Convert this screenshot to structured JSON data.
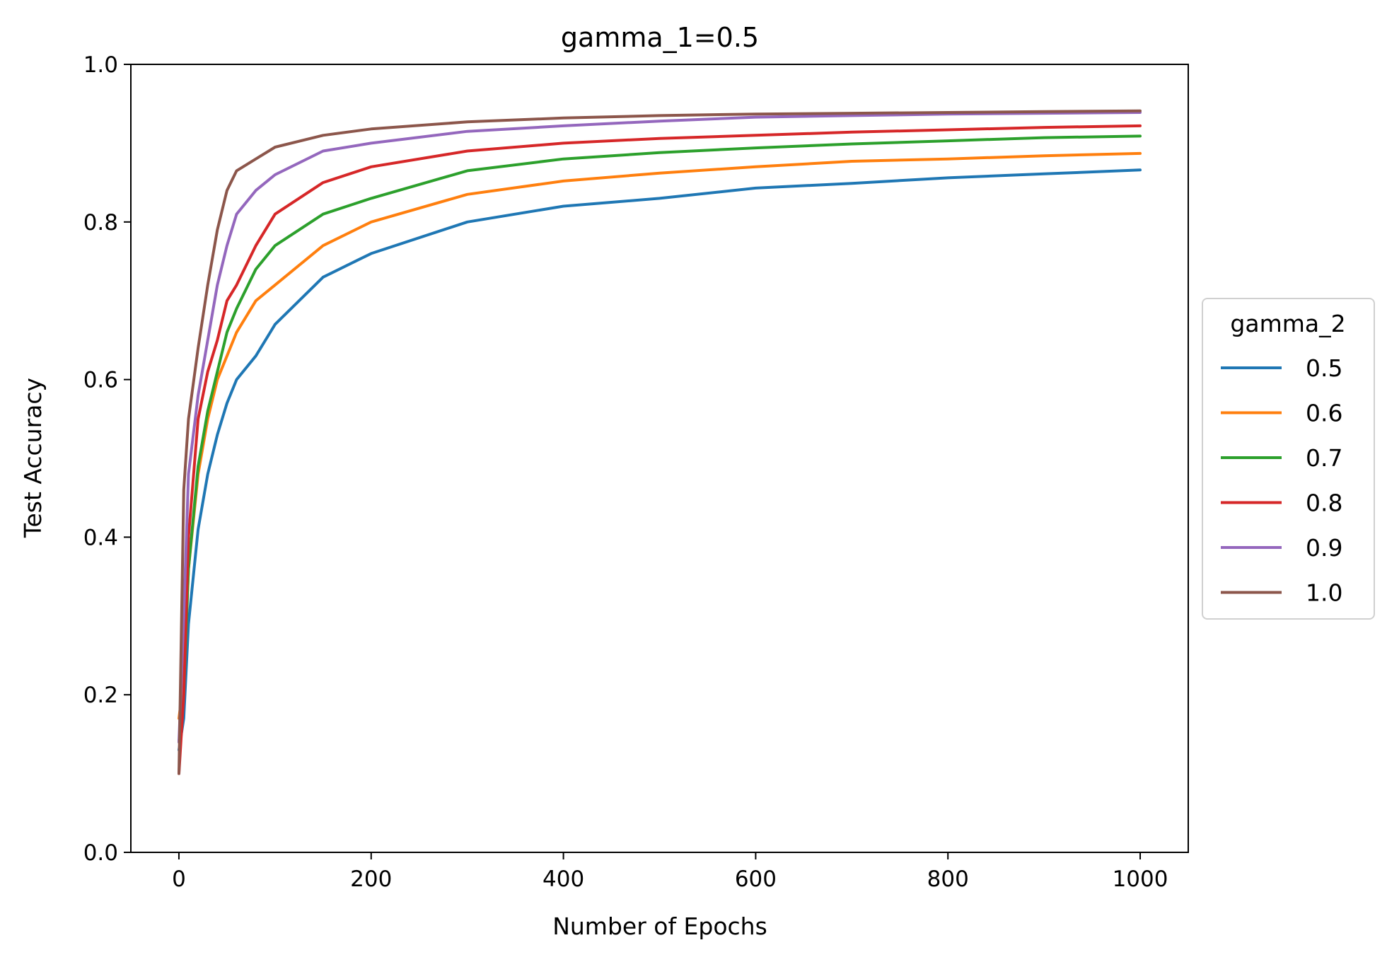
{
  "chart_data": {
    "type": "line",
    "title": "gamma_1=0.5",
    "xlabel": "Number of Epochs",
    "ylabel": "Test Accuracy",
    "xlim": [
      -50,
      1050
    ],
    "ylim": [
      0.0,
      1.0
    ],
    "x_ticks": [
      0,
      200,
      400,
      600,
      800,
      1000
    ],
    "y_ticks": [
      0.0,
      0.2,
      0.4,
      0.6,
      0.8,
      1.0
    ],
    "x_tick_labels": [
      "0",
      "200",
      "400",
      "600",
      "800",
      "1000"
    ],
    "y_tick_labels": [
      "0.0",
      "0.2",
      "0.4",
      "0.6",
      "0.8",
      "1.0"
    ],
    "grid": false,
    "legend": {
      "title": "gamma_2",
      "placement": "outside-right-center"
    },
    "x": [
      0,
      5,
      10,
      20,
      30,
      40,
      50,
      60,
      80,
      100,
      150,
      200,
      300,
      400,
      500,
      600,
      700,
      800,
      900,
      1000
    ],
    "series": [
      {
        "name": "0.5",
        "color": "#1f77b4",
        "values": [
          0.13,
          0.17,
          0.29,
          0.41,
          0.48,
          0.53,
          0.57,
          0.6,
          0.63,
          0.67,
          0.73,
          0.76,
          0.8,
          0.82,
          0.83,
          0.843,
          0.849,
          0.856,
          0.861,
          0.866
        ]
      },
      {
        "name": "0.6",
        "color": "#ff7f0e",
        "values": [
          0.17,
          0.22,
          0.36,
          0.48,
          0.55,
          0.6,
          0.63,
          0.66,
          0.7,
          0.72,
          0.77,
          0.8,
          0.835,
          0.852,
          0.862,
          0.87,
          0.877,
          0.88,
          0.884,
          0.887
        ]
      },
      {
        "name": "0.7",
        "color": "#2ca02c",
        "values": [
          0.14,
          0.2,
          0.36,
          0.49,
          0.56,
          0.61,
          0.66,
          0.69,
          0.74,
          0.77,
          0.81,
          0.83,
          0.865,
          0.88,
          0.888,
          0.894,
          0.899,
          0.903,
          0.907,
          0.909
        ]
      },
      {
        "name": "0.8",
        "color": "#d62728",
        "values": [
          0.1,
          0.2,
          0.4,
          0.55,
          0.61,
          0.65,
          0.7,
          0.72,
          0.77,
          0.81,
          0.85,
          0.87,
          0.89,
          0.9,
          0.906,
          0.91,
          0.914,
          0.917,
          0.92,
          0.922
        ]
      },
      {
        "name": "0.9",
        "color": "#9467bd",
        "values": [
          0.14,
          0.3,
          0.48,
          0.58,
          0.65,
          0.72,
          0.77,
          0.81,
          0.84,
          0.86,
          0.89,
          0.9,
          0.915,
          0.922,
          0.928,
          0.933,
          0.935,
          0.937,
          0.938,
          0.939
        ]
      },
      {
        "name": "1.0",
        "color": "#8c564b",
        "values": [
          0.1,
          0.46,
          0.55,
          0.64,
          0.72,
          0.79,
          0.84,
          0.865,
          0.88,
          0.895,
          0.91,
          0.918,
          0.927,
          0.932,
          0.935,
          0.937,
          0.938,
          0.939,
          0.94,
          0.941
        ]
      }
    ]
  }
}
